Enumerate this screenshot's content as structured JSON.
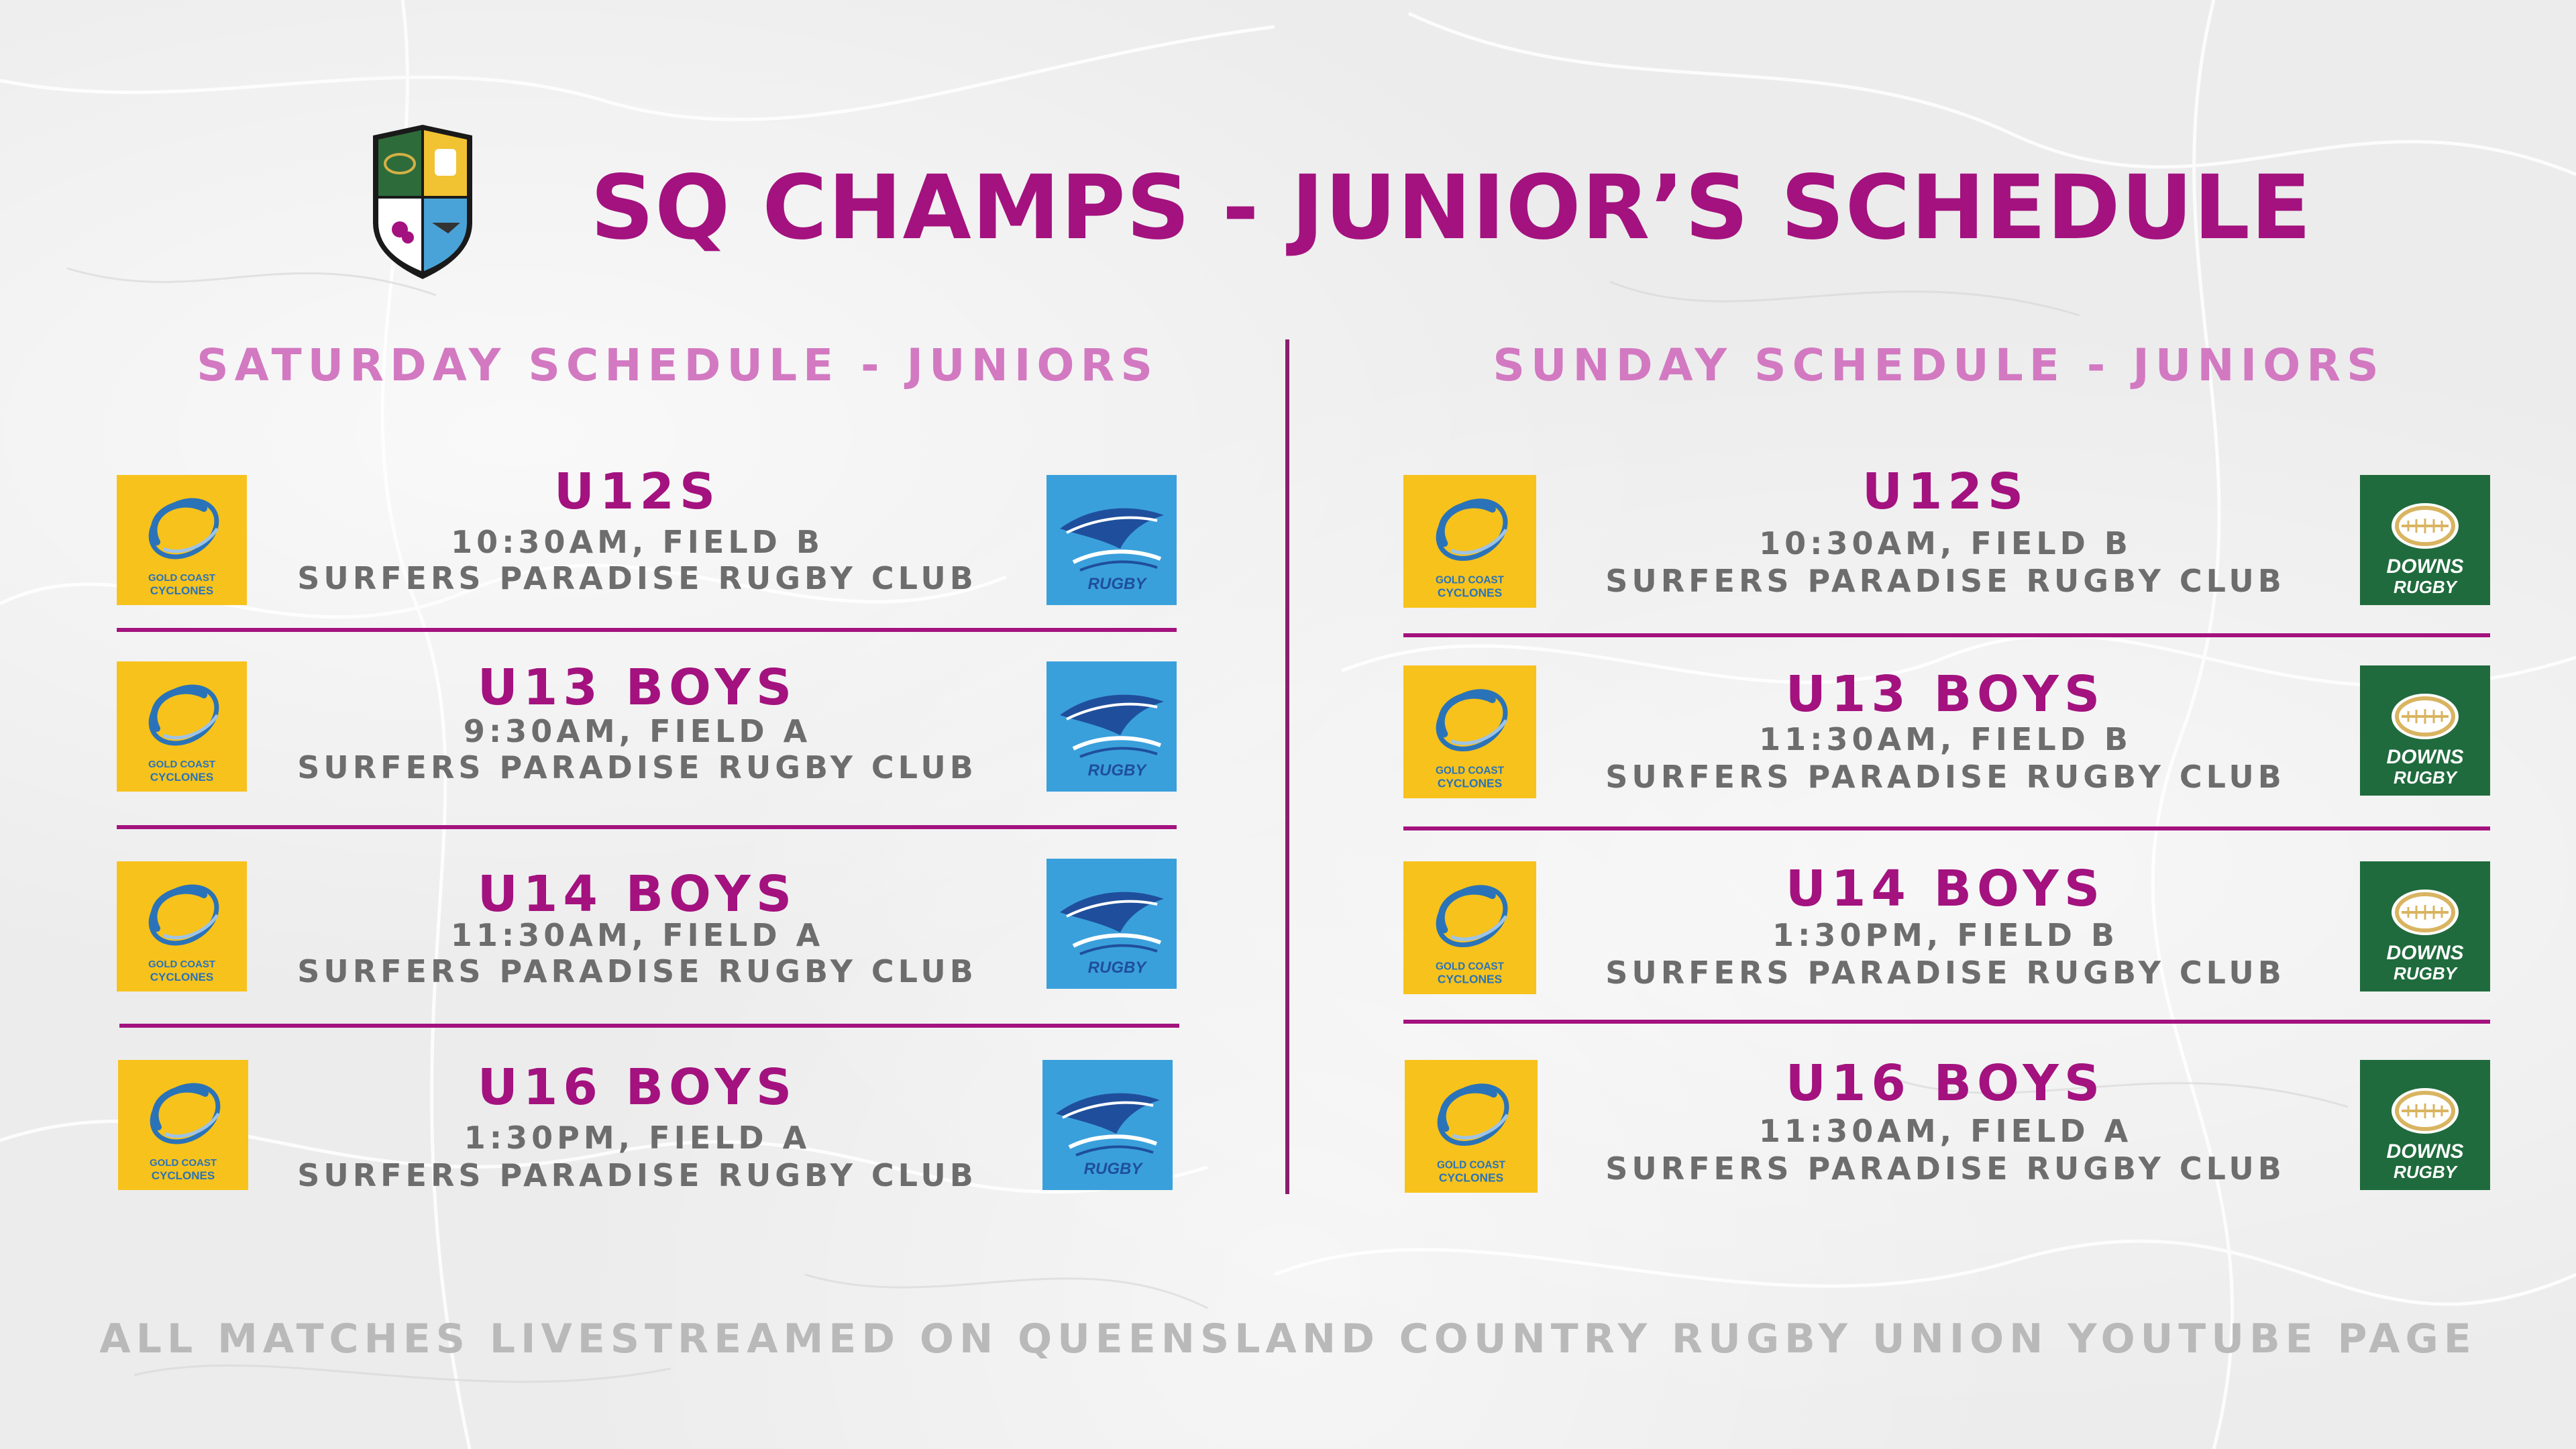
{
  "header": {
    "title": "SQ CHAMPS - JUNIOR’S SCHEDULE",
    "shield_icon": "qcru-shield-icon"
  },
  "saturday": {
    "heading": "SATURDAY SCHEDULE - JUNIORS",
    "matches": [
      {
        "title": "U12S",
        "time": "10:30AM, FIELD B",
        "venue": "SURFERS PARADISE RUGBY CLUB",
        "home_logo": "gold-coast-cyclones-logo",
        "away_logo": "sunshine-coast-rugby-logo"
      },
      {
        "title": "U13 BOYS",
        "time": "9:30AM, FIELD A",
        "venue": "SURFERS PARADISE RUGBY CLUB",
        "home_logo": "gold-coast-cyclones-logo",
        "away_logo": "sunshine-coast-rugby-logo"
      },
      {
        "title": "U14 BOYS",
        "time": "11:30AM, FIELD A",
        "venue": "SURFERS PARADISE RUGBY CLUB",
        "home_logo": "gold-coast-cyclones-logo",
        "away_logo": "sunshine-coast-rugby-logo"
      },
      {
        "title": "U16 BOYS",
        "time": "1:30PM, FIELD A",
        "venue": "SURFERS PARADISE RUGBY CLUB",
        "home_logo": "gold-coast-cyclones-logo",
        "away_logo": "sunshine-coast-rugby-logo"
      }
    ]
  },
  "sunday": {
    "heading": "SUNDAY SCHEDULE - JUNIORS",
    "matches": [
      {
        "title": "U12S",
        "time": "10:30AM, FIELD B",
        "venue": "SURFERS PARADISE RUGBY CLUB",
        "home_logo": "gold-coast-cyclones-logo",
        "away_logo": "downs-rugby-logo"
      },
      {
        "title": "U13 BOYS",
        "time": "11:30AM, FIELD B",
        "venue": "SURFERS PARADISE RUGBY CLUB",
        "home_logo": "gold-coast-cyclones-logo",
        "away_logo": "downs-rugby-logo"
      },
      {
        "title": "U14 BOYS",
        "time": "1:30PM, FIELD B",
        "venue": "SURFERS PARADISE RUGBY CLUB",
        "home_logo": "gold-coast-cyclones-logo",
        "away_logo": "downs-rugby-logo"
      },
      {
        "title": "U16 BOYS",
        "time": "11:30AM, FIELD A",
        "venue": "SURFERS PARADISE RUGBY CLUB",
        "home_logo": "gold-coast-cyclones-logo",
        "away_logo": "downs-rugby-logo"
      }
    ]
  },
  "logos": {
    "cyclones_text_1": "GOLD COAST",
    "cyclones_text_2": "CYCLONES",
    "sunshine_text": "RUGBY",
    "downs_text_1": "DOWNS",
    "downs_text_2": "RUGBY"
  },
  "footer": {
    "text": "ALL MATCHES LIVESTREAMED ON QUEENSLAND COUNTRY RUGBY UNION YOUTUBE PAGE"
  },
  "colors": {
    "title": "#a3127e",
    "heading": "#d279c1",
    "body_text": "#6d6d6d",
    "footer_text": "#b9b9b9",
    "cyclones_yellow": "#f7c21c",
    "sunshine_blue": "#3aa0dc",
    "downs_green": "#1f6b3d"
  }
}
